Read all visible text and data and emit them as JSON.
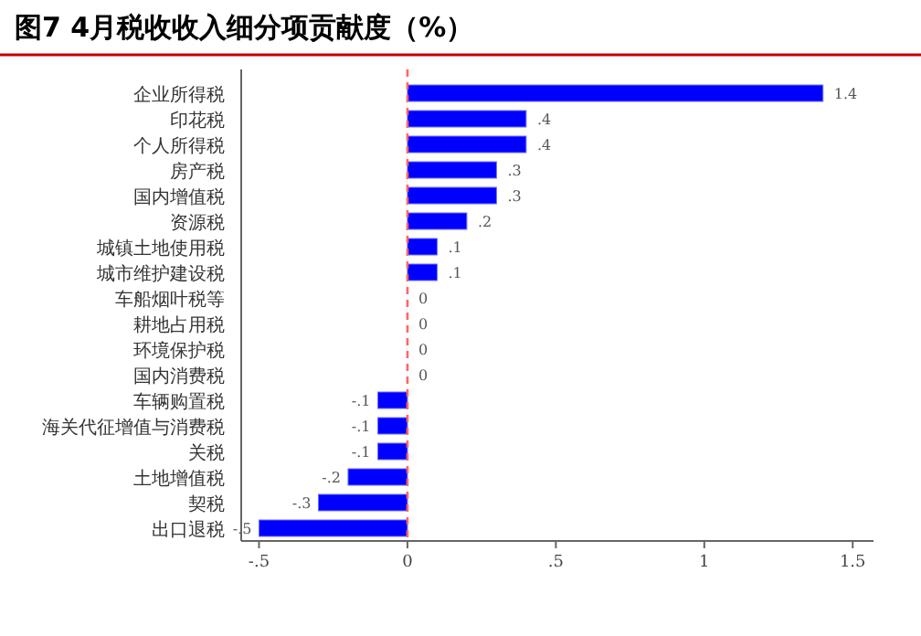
{
  "chart_data": {
    "type": "bar",
    "orientation": "horizontal",
    "title": "图7  4月税收收入细分项贡献度（%）",
    "categories": [
      "企业所得税",
      "印花税",
      "个人所得税",
      "房产税",
      "国内增值税",
      "资源税",
      "城镇土地使用税",
      "城市维护建设税",
      "车船烟叶税等",
      "耕地占用税",
      "环境保护税",
      "国内消费税",
      "车辆购置税",
      "海关代征增值与消费税",
      "关税",
      "土地增值税",
      "契税",
      "出口退税"
    ],
    "values": [
      1.4,
      0.4,
      0.4,
      0.3,
      0.3,
      0.2,
      0.1,
      0.1,
      0,
      0,
      0,
      0,
      -0.1,
      -0.1,
      -0.1,
      -0.2,
      -0.3,
      -0.5
    ],
    "value_labels": [
      "1.4",
      ".4",
      ".4",
      ".3",
      ".3",
      ".2",
      ".1",
      ".1",
      "0",
      "0",
      "0",
      "0",
      "-.1",
      "-.1",
      "-.1",
      "-.2",
      "-.3",
      "-.5"
    ],
    "color": "#0000ff",
    "xlim": [
      -0.56,
      1.57
    ],
    "xticks": [
      {
        "value": -0.5,
        "label": "-.5"
      },
      0,
      {
        "value": 0.5,
        "label": ".5"
      },
      1,
      1.5
    ],
    "ref_lines": [
      {
        "axis": "x",
        "value": 0,
        "color": "#ff6666",
        "line_style": "dashed"
      }
    ],
    "grid": false
  }
}
